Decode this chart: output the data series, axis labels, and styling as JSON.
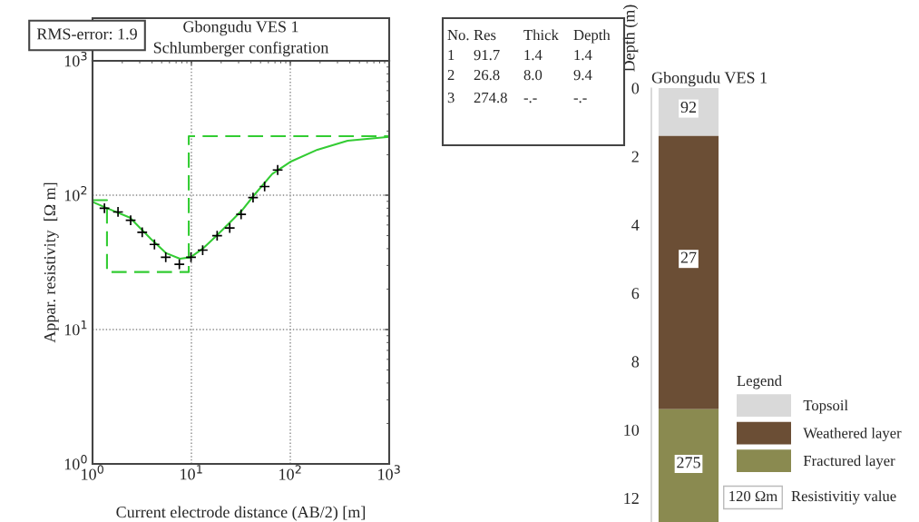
{
  "chart_data": [
    {
      "type": "scatter",
      "title": "Gbongudu VES 1",
      "subtitle": "Schlumberger configration",
      "xlabel": "Current electrode distance (AB/2) [m]",
      "ylabel": "Appar. resistivity  [Ω m]",
      "log": "xy",
      "grid": true,
      "legend": false,
      "xlim": [
        1,
        1000
      ],
      "ylim": [
        1,
        1000
      ],
      "xticks": [
        {
          "value": 1,
          "label": "10$^{0}$"
        },
        {
          "value": 10,
          "label": "10$^{1}$"
        },
        {
          "value": 100,
          "label": "10$^{2}$"
        },
        {
          "value": 1000,
          "label": "10$^{3}$"
        }
      ],
      "yticks": [
        {
          "value": 1,
          "label": "10$^{0}$"
        },
        {
          "value": 10,
          "label": "10$^{1}$"
        },
        {
          "value": 100,
          "label": "10$^{2}$"
        },
        {
          "value": 1000,
          "label": "10$^{3}$"
        }
      ],
      "series": [
        {
          "type": "scatter",
          "color": "#000000",
          "marker": "cross",
          "x": [
            1.32,
            1.81,
            2.43,
            3.18,
            4.23,
            5.5,
            7.55,
            9.9,
            13,
            18.2,
            24.4,
            31.8,
            42,
            55,
            74.5
          ],
          "values": [
            80,
            75,
            65,
            53,
            43,
            34.5,
            30.6,
            34.5,
            39,
            50,
            57,
            72,
            96,
            116,
            154
          ]
        },
        {
          "type": "line",
          "color": "#33cc33",
          "line_style": "solid",
          "marker": "none",
          "x": [
            1,
            1.46,
            2.39,
            3.92,
            5.57,
            7.65,
            9.8,
            13,
            18.5,
            32.4,
            43,
            65.6,
            100,
            188,
            380,
            1000
          ],
          "values": [
            89,
            79,
            68,
            47,
            37,
            33.7,
            34.5,
            40,
            51,
            77,
            100,
            144,
            177,
            218,
            254,
            272
          ]
        },
        {
          "type": "step",
          "color": "#33cc33",
          "line_style": "dashed",
          "marker": "none",
          "x": [
            1,
            1.4,
            9.4,
            1000
          ],
          "values": [
            91.7,
            26.8,
            274.8,
            274.8
          ]
        }
      ],
      "annotations": [
        "RMS-error: 1.9",
        "No.  Res    Thick  Depth",
        "1    91.7   1.4    1.4",
        "2    26.8   8.0    9.4",
        "3    274.8   -.-    -.-"
      ]
    },
    {
      "type": "bar",
      "stacked": true,
      "title": "Gbongudu VES 1",
      "ylabel": "Depth (m)",
      "categories": [
        null
      ],
      "ylim": [
        12.7,
        0
      ],
      "yticks": [
        0,
        2,
        4,
        6,
        8,
        10,
        12
      ],
      "tick_labels": "y",
      "legend": "bottom right",
      "legend_title": "Legend",
      "series": [
        {
          "name": "Topsoil",
          "color": "#d9d9d9",
          "values": [
            1.4
          ]
        },
        {
          "name": "Weathered layer",
          "color": "#6b4e35",
          "values": [
            8.0
          ]
        },
        {
          "name": "Fractured layer",
          "color": "#8a8a50",
          "values": [
            3.3
          ]
        }
      ],
      "annotations": [
        {
          "text": "92",
          "y": 0.6
        },
        {
          "text": "27",
          "y": 5.0
        },
        {
          "text": "275",
          "y": 11.0
        },
        "120 Ωm",
        "Resistivitiy value"
      ]
    }
  ]
}
